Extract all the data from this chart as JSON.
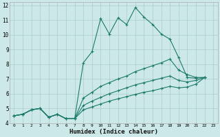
{
  "title": "",
  "xlabel": "Humidex (Indice chaleur)",
  "ylabel": "",
  "bg_color": "#cce8e8",
  "grid_color": "#aacccc",
  "line_color": "#1a7a6a",
  "xlim": [
    -0.5,
    23.5
  ],
  "ylim": [
    4,
    12.2
  ],
  "xticks": [
    0,
    1,
    2,
    3,
    4,
    5,
    6,
    7,
    8,
    9,
    10,
    11,
    12,
    13,
    14,
    15,
    16,
    17,
    18,
    19,
    20,
    21,
    22,
    23
  ],
  "yticks": [
    4,
    5,
    6,
    7,
    8,
    9,
    10,
    11,
    12
  ],
  "series": [
    {
      "x": [
        0,
        1,
        2,
        3,
        4,
        5,
        6,
        7,
        8,
        9,
        10,
        11,
        12,
        13,
        14,
        15,
        16,
        17,
        18,
        19,
        20,
        21,
        22
      ],
      "y": [
        4.5,
        4.6,
        4.9,
        5.0,
        4.4,
        4.6,
        4.3,
        4.3,
        8.1,
        8.85,
        11.1,
        10.05,
        11.15,
        10.7,
        11.85,
        11.2,
        10.7,
        10.05,
        9.7,
        8.45,
        7.1,
        7.05,
        7.1
      ]
    },
    {
      "x": [
        0,
        1,
        2,
        3,
        4,
        5,
        6,
        7,
        8,
        9,
        10,
        11,
        12,
        13,
        14,
        15,
        16,
        17,
        18,
        19,
        20,
        21,
        22
      ],
      "y": [
        4.5,
        4.6,
        4.9,
        5.0,
        4.4,
        4.6,
        4.3,
        4.3,
        5.7,
        6.1,
        6.5,
        6.75,
        7.0,
        7.2,
        7.5,
        7.7,
        7.9,
        8.1,
        8.35,
        7.6,
        7.3,
        7.1,
        7.1
      ]
    },
    {
      "x": [
        0,
        1,
        2,
        3,
        4,
        5,
        6,
        7,
        8,
        9,
        10,
        11,
        12,
        13,
        14,
        15,
        16,
        17,
        18,
        19,
        20,
        21,
        22
      ],
      "y": [
        4.5,
        4.6,
        4.9,
        5.0,
        4.4,
        4.6,
        4.3,
        4.3,
        5.2,
        5.5,
        5.75,
        6.0,
        6.2,
        6.4,
        6.6,
        6.75,
        6.9,
        7.05,
        7.2,
        6.9,
        6.8,
        6.9,
        7.1
      ]
    },
    {
      "x": [
        0,
        1,
        2,
        3,
        4,
        5,
        6,
        7,
        8,
        9,
        10,
        11,
        12,
        13,
        14,
        15,
        16,
        17,
        18,
        19,
        20,
        21,
        22
      ],
      "y": [
        4.5,
        4.6,
        4.9,
        5.0,
        4.4,
        4.6,
        4.3,
        4.3,
        4.9,
        5.1,
        5.3,
        5.5,
        5.65,
        5.8,
        5.95,
        6.1,
        6.2,
        6.35,
        6.5,
        6.4,
        6.45,
        6.65,
        7.1
      ]
    }
  ]
}
